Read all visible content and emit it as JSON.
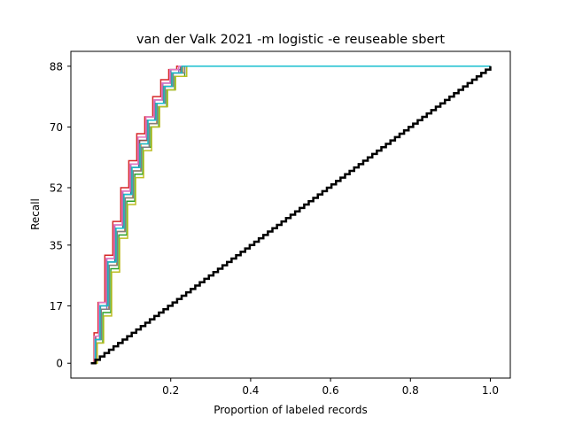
{
  "chart_data": {
    "type": "line",
    "title": "van der Valk 2021 -m logistic -e reuseable sbert",
    "xlabel": "Proportion of labeled records",
    "ylabel": "Recall",
    "xlim": [
      -0.05,
      1.05
    ],
    "ylim": [
      -4.4,
      92.4
    ],
    "x_ticks": [
      0.2,
      0.4,
      0.6,
      0.8,
      1.0
    ],
    "x_tick_labels": [
      "0.2",
      "0.4",
      "0.6",
      "0.8",
      "1.0"
    ],
    "y_ticks": [
      0,
      17,
      35,
      52,
      70,
      88
    ],
    "y_tick_labels": [
      "0",
      "17",
      "35",
      "52",
      "70",
      "88"
    ],
    "grid": false,
    "legend": "none",
    "total_relevant": 88,
    "random_baseline": {
      "x": [
        0.0,
        1.0
      ],
      "y": [
        0,
        88
      ],
      "color": "#000000"
    },
    "series": [
      {
        "color": "#1f77b4",
        "x": [
          0,
          0.01,
          0.02,
          0.04,
          0.06,
          0.08,
          0.1,
          0.12,
          0.14,
          0.16,
          0.18,
          0.2,
          0.225,
          1.0
        ],
        "y": [
          0,
          8,
          17,
          30,
          40,
          50,
          58,
          66,
          72,
          78,
          83,
          87,
          88,
          88
        ]
      },
      {
        "color": "#ff7f0e",
        "x": [
          0,
          0.012,
          0.025,
          0.045,
          0.065,
          0.085,
          0.105,
          0.125,
          0.145,
          0.165,
          0.185,
          0.205,
          0.23,
          1.0
        ],
        "y": [
          0,
          7,
          16,
          29,
          39,
          49,
          57,
          65,
          71,
          77,
          82,
          86,
          88,
          88
        ]
      },
      {
        "color": "#2ca02c",
        "x": [
          0,
          0.015,
          0.03,
          0.05,
          0.07,
          0.09,
          0.11,
          0.13,
          0.15,
          0.17,
          0.19,
          0.21,
          0.235,
          1.0
        ],
        "y": [
          0,
          6,
          15,
          28,
          38,
          48,
          56,
          64,
          70,
          76,
          81,
          85,
          88,
          88
        ]
      },
      {
        "color": "#d62728",
        "x": [
          0,
          0.008,
          0.018,
          0.035,
          0.055,
          0.075,
          0.095,
          0.115,
          0.135,
          0.155,
          0.175,
          0.195,
          0.215,
          1.0
        ],
        "y": [
          0,
          9,
          18,
          32,
          42,
          52,
          60,
          68,
          73,
          79,
          84,
          87,
          88,
          88
        ]
      },
      {
        "color": "#9467bd",
        "x": [
          0,
          0.01,
          0.022,
          0.04,
          0.06,
          0.08,
          0.1,
          0.12,
          0.14,
          0.16,
          0.18,
          0.2,
          0.22,
          1.0
        ],
        "y": [
          0,
          7,
          16,
          31,
          41,
          51,
          59,
          66,
          72,
          78,
          83,
          86,
          88,
          88
        ]
      },
      {
        "color": "#8c564b",
        "x": [
          0,
          0.012,
          0.024,
          0.042,
          0.062,
          0.082,
          0.102,
          0.122,
          0.142,
          0.162,
          0.182,
          0.202,
          0.225,
          1.0
        ],
        "y": [
          0,
          8,
          17,
          30,
          40,
          50,
          58,
          66,
          72,
          77,
          82,
          86,
          88,
          88
        ]
      },
      {
        "color": "#e377c2",
        "x": [
          0,
          0.009,
          0.02,
          0.038,
          0.058,
          0.078,
          0.098,
          0.118,
          0.138,
          0.158,
          0.178,
          0.198,
          0.22,
          1.0
        ],
        "y": [
          0,
          8,
          18,
          31,
          41,
          51,
          59,
          67,
          73,
          78,
          83,
          87,
          88,
          88
        ]
      },
      {
        "color": "#7f7f7f",
        "x": [
          0,
          0.013,
          0.026,
          0.046,
          0.066,
          0.086,
          0.106,
          0.126,
          0.146,
          0.166,
          0.186,
          0.206,
          0.235,
          1.0
        ],
        "y": [
          0,
          7,
          16,
          29,
          39,
          49,
          57,
          64,
          71,
          77,
          82,
          86,
          88,
          88
        ]
      },
      {
        "color": "#bcbd22",
        "x": [
          0,
          0.016,
          0.032,
          0.052,
          0.072,
          0.092,
          0.112,
          0.132,
          0.152,
          0.172,
          0.192,
          0.212,
          0.24,
          1.0
        ],
        "y": [
          0,
          6,
          14,
          27,
          37,
          47,
          55,
          63,
          70,
          76,
          81,
          85,
          88,
          88
        ]
      },
      {
        "color": "#17becf",
        "x": [
          0,
          0.011,
          0.023,
          0.043,
          0.063,
          0.083,
          0.103,
          0.123,
          0.143,
          0.163,
          0.183,
          0.203,
          0.228,
          1.0
        ],
        "y": [
          0,
          7,
          17,
          30,
          40,
          50,
          58,
          65,
          72,
          77,
          82,
          86,
          88,
          88
        ]
      }
    ]
  }
}
